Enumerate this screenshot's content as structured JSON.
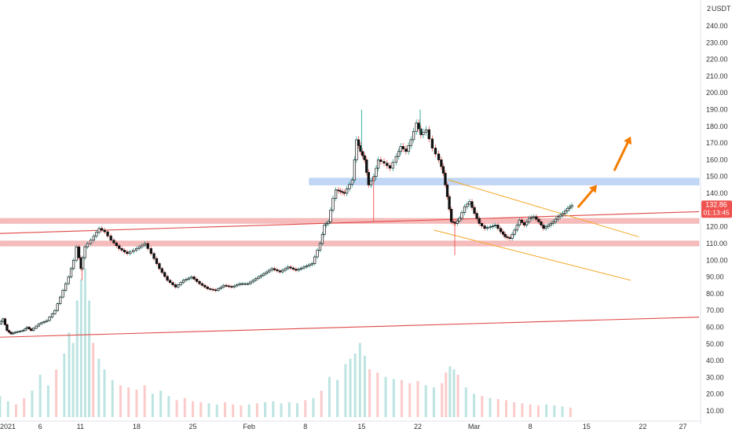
{
  "chart_data": {
    "type": "candlestick",
    "currency": "USDT",
    "scale_mode_label": "2",
    "price_axis": {
      "range": [
        5,
        250
      ],
      "ticks": [
        "240.00",
        "230.00",
        "220.00",
        "210.00",
        "200.00",
        "190.00",
        "180.00",
        "170.00",
        "160.00",
        "150.00",
        "140.00",
        "130.00",
        "120.00",
        "110.00",
        "100.00",
        "90.00",
        "80.00",
        "70.00",
        "60.00",
        "50.00",
        "40.00",
        "30.00",
        "20.00",
        "10.00"
      ]
    },
    "time_axis": {
      "range_days": [
        0,
        87
      ],
      "ticks": [
        {
          "day": 0,
          "label": "2021"
        },
        {
          "day": 5,
          "label": "6"
        },
        {
          "day": 10,
          "label": "11"
        },
        {
          "day": 17,
          "label": "18"
        },
        {
          "day": 24,
          "label": "25"
        },
        {
          "day": 31,
          "label": "Feb"
        },
        {
          "day": 38,
          "label": "8"
        },
        {
          "day": 45,
          "label": "15"
        },
        {
          "day": 52,
          "label": "22"
        },
        {
          "day": 59,
          "label": "Mar"
        },
        {
          "day": 66,
          "label": "8"
        },
        {
          "day": 73,
          "label": "15"
        },
        {
          "day": 80,
          "label": "22"
        },
        {
          "day": 85,
          "label": "27"
        }
      ]
    },
    "last_price": {
      "value": "132.86",
      "countdown": "01:13:45",
      "color": "#ef5350"
    },
    "colors": {
      "up": "#26a69a",
      "down": "#ef5350",
      "body": "#111111",
      "zone": "#bbd3f4",
      "support": "#f3a6a6",
      "trendline": "#e04848",
      "channel": "#f5a623",
      "arrow": "#f57c00"
    },
    "price_series": [
      [
        0,
        62
      ],
      [
        0.5,
        65
      ],
      [
        1,
        58
      ],
      [
        1.5,
        56
      ],
      [
        2,
        57
      ],
      [
        3,
        58
      ],
      [
        3.5,
        60
      ],
      [
        4,
        58
      ],
      [
        5,
        62
      ],
      [
        6,
        64
      ],
      [
        7,
        70
      ],
      [
        8,
        82
      ],
      [
        8.7,
        90
      ],
      [
        9.3,
        100
      ],
      [
        9.7,
        108
      ],
      [
        10.2,
        95
      ],
      [
        10.7,
        108
      ],
      [
        11.5,
        112
      ],
      [
        12.5,
        119
      ],
      [
        13.2,
        117
      ],
      [
        14,
        112
      ],
      [
        15,
        107
      ],
      [
        16,
        104
      ],
      [
        16.8,
        106
      ],
      [
        17.5,
        108
      ],
      [
        18.2,
        110
      ],
      [
        19,
        104
      ],
      [
        20,
        95
      ],
      [
        21,
        88
      ],
      [
        22,
        84
      ],
      [
        23,
        88
      ],
      [
        24,
        90
      ],
      [
        25,
        86
      ],
      [
        26,
        83
      ],
      [
        27,
        82
      ],
      [
        28,
        85
      ],
      [
        29,
        84
      ],
      [
        30,
        86
      ],
      [
        31,
        86
      ],
      [
        32,
        89
      ],
      [
        33,
        92
      ],
      [
        34,
        95
      ],
      [
        35,
        93
      ],
      [
        36,
        96
      ],
      [
        37,
        94
      ],
      [
        38,
        96
      ],
      [
        39,
        98
      ],
      [
        40,
        110
      ],
      [
        40.5,
        121
      ],
      [
        41,
        123
      ],
      [
        41.6,
        137
      ],
      [
        42,
        142
      ],
      [
        42.5,
        141
      ],
      [
        43,
        140
      ],
      [
        44,
        148
      ],
      [
        44.5,
        172
      ],
      [
        45,
        165
      ],
      [
        45.5,
        160
      ],
      [
        46,
        145
      ],
      [
        46.7,
        150
      ],
      [
        47.2,
        160
      ],
      [
        48,
        158
      ],
      [
        48.7,
        155
      ],
      [
        49.5,
        162
      ],
      [
        50,
        168
      ],
      [
        50.7,
        165
      ],
      [
        51.3,
        172
      ],
      [
        52,
        182
      ],
      [
        52.5,
        175
      ],
      [
        53.2,
        178
      ],
      [
        54,
        167
      ],
      [
        54.8,
        160
      ],
      [
        55.3,
        152
      ],
      [
        55.8,
        138
      ],
      [
        56.3,
        123
      ],
      [
        56.8,
        122
      ],
      [
        57.3,
        125
      ],
      [
        58,
        132
      ],
      [
        58.6,
        135
      ],
      [
        59.2,
        128
      ],
      [
        59.8,
        122
      ],
      [
        60.5,
        119
      ],
      [
        61.2,
        120
      ],
      [
        61.8,
        121
      ],
      [
        62.5,
        117
      ],
      [
        63,
        114
      ],
      [
        63.6,
        113
      ],
      [
        64.2,
        118
      ],
      [
        64.8,
        124
      ],
      [
        65.4,
        121
      ],
      [
        66,
        125
      ],
      [
        66.6,
        126
      ],
      [
        67.2,
        123
      ],
      [
        67.8,
        119
      ],
      [
        68.4,
        121
      ],
      [
        69,
        123
      ],
      [
        69.6,
        126
      ],
      [
        70.2,
        128
      ],
      [
        70.8,
        131
      ],
      [
        71.3,
        132.86
      ]
    ],
    "wick_spikes": [
      {
        "day": 45,
        "high": 190
      },
      {
        "day": 52.3,
        "high": 190
      },
      {
        "day": 56.6,
        "low": 103
      },
      {
        "day": 10.2,
        "low": 88
      },
      {
        "day": 46.5,
        "low": 123
      }
    ],
    "volume_scale_max": 100,
    "volume": [
      [
        0,
        20
      ],
      [
        1,
        15
      ],
      [
        2,
        12
      ],
      [
        3,
        18
      ],
      [
        4,
        25
      ],
      [
        5,
        40
      ],
      [
        6,
        30
      ],
      [
        7,
        45
      ],
      [
        8,
        60
      ],
      [
        8.6,
        80
      ],
      [
        9.1,
        70
      ],
      [
        9.6,
        110
      ],
      [
        10.1,
        130
      ],
      [
        10.6,
        140
      ],
      [
        11.1,
        110
      ],
      [
        11.6,
        70
      ],
      [
        12.3,
        55
      ],
      [
        13,
        45
      ],
      [
        14,
        35
      ],
      [
        15,
        30
      ],
      [
        16,
        28
      ],
      [
        17,
        26
      ],
      [
        18,
        30
      ],
      [
        19,
        22
      ],
      [
        20,
        25
      ],
      [
        21,
        20
      ],
      [
        22,
        16
      ],
      [
        23,
        18
      ],
      [
        24,
        15
      ],
      [
        25,
        14
      ],
      [
        26,
        13
      ],
      [
        27,
        12
      ],
      [
        28,
        14
      ],
      [
        29,
        12
      ],
      [
        30,
        11
      ],
      [
        31,
        12
      ],
      [
        32,
        13
      ],
      [
        33,
        14
      ],
      [
        34,
        15
      ],
      [
        35,
        13
      ],
      [
        36,
        14
      ],
      [
        37,
        13
      ],
      [
        38,
        16
      ],
      [
        39,
        18
      ],
      [
        40,
        25
      ],
      [
        41,
        38
      ],
      [
        42,
        35
      ],
      [
        43,
        50
      ],
      [
        43.6,
        55
      ],
      [
        44.2,
        60
      ],
      [
        44.8,
        70
      ],
      [
        45.4,
        58
      ],
      [
        46,
        45
      ],
      [
        47,
        42
      ],
      [
        48,
        38
      ],
      [
        49,
        36
      ],
      [
        50,
        35
      ],
      [
        51,
        32
      ],
      [
        52,
        34
      ],
      [
        53,
        30
      ],
      [
        54,
        28
      ],
      [
        55,
        32
      ],
      [
        55.5,
        42
      ],
      [
        56,
        48
      ],
      [
        56.5,
        45
      ],
      [
        57,
        40
      ],
      [
        58,
        28
      ],
      [
        59,
        22
      ],
      [
        60,
        20
      ],
      [
        61,
        18
      ],
      [
        62,
        17
      ],
      [
        63,
        16
      ],
      [
        64,
        14
      ],
      [
        65,
        13
      ],
      [
        66,
        12
      ],
      [
        67,
        11
      ],
      [
        68,
        12
      ],
      [
        69,
        11
      ],
      [
        70,
        10
      ],
      [
        71,
        9
      ]
    ],
    "horizontal_zones": [
      {
        "type": "resistance",
        "low": 145,
        "high": 149,
        "day_from": 38.5,
        "day_to": 87
      },
      {
        "type": "support",
        "low": 122,
        "high": 125,
        "day_from": 0,
        "day_to": 87
      },
      {
        "type": "support",
        "low": 108.5,
        "high": 111.5,
        "day_from": 0,
        "day_to": 87
      }
    ],
    "trendlines": [
      {
        "from": [
          0,
          116
        ],
        "to": [
          87,
          129
        ]
      },
      {
        "from": [
          0,
          54
        ],
        "to": [
          87,
          66
        ]
      }
    ],
    "channel_lines": [
      {
        "from": [
          55.8,
          148
        ],
        "to": [
          79.5,
          114
        ]
      },
      {
        "from": [
          54,
          118
        ],
        "to": [
          78.5,
          88
        ]
      }
    ],
    "arrows": [
      {
        "from": [
          72,
          132
        ],
        "to": [
          74.3,
          145
        ]
      },
      {
        "from": [
          76.5,
          154
        ],
        "to": [
          78.5,
          174
        ]
      }
    ]
  }
}
